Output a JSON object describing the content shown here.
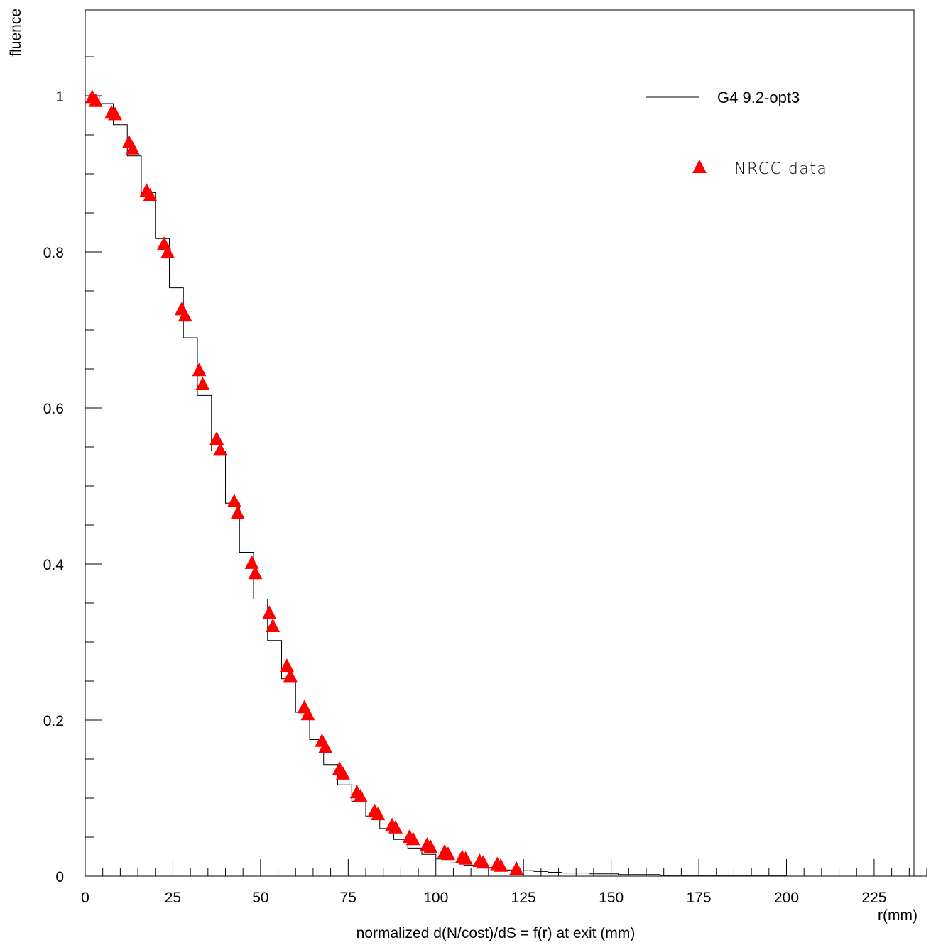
{
  "chart_data": {
    "type": "line",
    "xlabel": "normalized d(N/cost)/dS = f(r) at exit (mm)",
    "xlabel_end": "r(mm)",
    "ylabel": "fluence",
    "xlim": [
      0,
      240
    ],
    "ylim": [
      0,
      1.1
    ],
    "x_ticks": [
      0,
      25,
      50,
      75,
      100,
      125,
      150,
      175,
      200,
      225
    ],
    "y_ticks": [
      0,
      0.2,
      0.4,
      0.6,
      0.8,
      1
    ],
    "y_tick_labels": [
      "0",
      "0.2",
      "0.4",
      "0.6",
      "0.8",
      "1"
    ],
    "grid": false,
    "legend_position": "top-right",
    "colors": {
      "sim_line": "#000000",
      "data_marker": "#ff0000"
    },
    "series": [
      {
        "name": "G4 9.2-opt3",
        "kind": "step-histogram",
        "bin_width": 4,
        "x": [
          0,
          4,
          8,
          12,
          16,
          20,
          24,
          28,
          32,
          36,
          40,
          44,
          48,
          52,
          56,
          60,
          64,
          68,
          72,
          76,
          80,
          84,
          88,
          92,
          96,
          100,
          104,
          108,
          112,
          116,
          120,
          124,
          128,
          132,
          136,
          140,
          144,
          148,
          152,
          156,
          160,
          164,
          168,
          172,
          176,
          180,
          184,
          188,
          192,
          196,
          200,
          204,
          208,
          212,
          216,
          220,
          224,
          228,
          232,
          236
        ],
        "values": [
          1.0,
          0.99,
          0.963,
          0.923,
          0.876,
          0.817,
          0.754,
          0.69,
          0.616,
          0.545,
          0.478,
          0.415,
          0.355,
          0.302,
          0.253,
          0.21,
          0.175,
          0.143,
          0.117,
          0.096,
          0.077,
          0.061,
          0.047,
          0.036,
          0.028,
          0.022,
          0.017,
          0.014,
          0.011,
          0.009,
          0.008,
          0.007,
          0.006,
          0.005,
          0.004,
          0.004,
          0.003,
          0.003,
          0.002,
          0.002,
          0.002,
          0.001,
          0.001,
          0.001,
          0.001,
          0.001,
          0.001,
          0.001,
          0.001,
          0.001,
          0.0,
          0.0,
          0.0,
          0.0,
          0.0,
          0.0,
          0.0,
          0.0,
          0.0,
          0.0
        ]
      },
      {
        "name": "NRCC data",
        "kind": "scatter",
        "marker": "triangle",
        "points": [
          [
            2,
            0.998
          ],
          [
            3,
            0.993
          ],
          [
            7.5,
            0.978
          ],
          [
            8.5,
            0.976
          ],
          [
            12.5,
            0.94
          ],
          [
            13.5,
            0.932
          ],
          [
            17.5,
            0.878
          ],
          [
            18.5,
            0.872
          ],
          [
            22.5,
            0.81
          ],
          [
            23.5,
            0.799
          ],
          [
            27.5,
            0.726
          ],
          [
            28.5,
            0.718
          ],
          [
            32.5,
            0.648
          ],
          [
            33.5,
            0.63
          ],
          [
            37.5,
            0.56
          ],
          [
            38.5,
            0.546
          ],
          [
            42.5,
            0.48
          ],
          [
            43.5,
            0.465
          ],
          [
            47.5,
            0.401
          ],
          [
            48.5,
            0.388
          ],
          [
            52.5,
            0.337
          ],
          [
            53.5,
            0.32
          ],
          [
            57.5,
            0.269
          ],
          [
            58.5,
            0.256
          ],
          [
            62.5,
            0.216
          ],
          [
            63.5,
            0.207
          ],
          [
            67.5,
            0.173
          ],
          [
            68.5,
            0.165
          ],
          [
            72.5,
            0.137
          ],
          [
            73.5,
            0.131
          ],
          [
            77.5,
            0.107
          ],
          [
            78.5,
            0.102
          ],
          [
            82.5,
            0.083
          ],
          [
            83.5,
            0.079
          ],
          [
            87.5,
            0.065
          ],
          [
            88.5,
            0.062
          ],
          [
            92.5,
            0.05
          ],
          [
            93.5,
            0.047
          ],
          [
            97.5,
            0.04
          ],
          [
            98.5,
            0.037
          ],
          [
            102.5,
            0.031
          ],
          [
            103.5,
            0.028
          ],
          [
            107.5,
            0.024
          ],
          [
            108.5,
            0.022
          ],
          [
            112.5,
            0.019
          ],
          [
            113.5,
            0.017
          ],
          [
            117.5,
            0.015
          ],
          [
            118.5,
            0.013
          ],
          [
            123,
            0.009
          ]
        ]
      }
    ]
  }
}
